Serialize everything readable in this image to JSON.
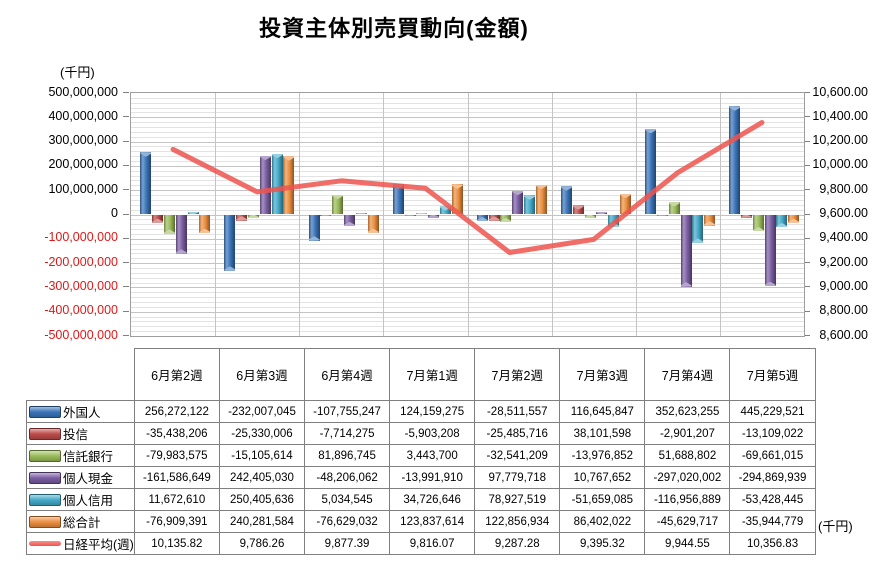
{
  "title": "投資主体別売買動向(金額)",
  "left_axis_unit": "(千円)",
  "right_axis_unit": "(千円)",
  "chart_data": {
    "type": "bar",
    "subtype": "3d-clustered-column-with-line",
    "title": "投資主体別売買動向(金額)",
    "categories": [
      "6月第2週",
      "6月第3週",
      "6月第4週",
      "7月第1週",
      "7月第2週",
      "7月第3週",
      "7月第4週",
      "7月第5週"
    ],
    "series": [
      {
        "name": "外国人",
        "type": "bar",
        "color": "#3a74b8",
        "values": [
          256272122,
          -232007045,
          -107755247,
          124159275,
          -28511557,
          116645847,
          352623255,
          445229521
        ]
      },
      {
        "name": "投信",
        "type": "bar",
        "color": "#be4b48",
        "values": [
          -35438206,
          -25330006,
          -7714275,
          -5903208,
          -25485716,
          38101598,
          -2901207,
          -13109022
        ]
      },
      {
        "name": "信託銀行",
        "type": "bar",
        "color": "#9abb59",
        "values": [
          -79983575,
          -15105614,
          81896745,
          3443700,
          -32541209,
          -13976852,
          51688802,
          -69661015
        ]
      },
      {
        "name": "個人現金",
        "type": "bar",
        "color": "#7a5da2",
        "values": [
          -161586649,
          242405030,
          -48206062,
          -13991910,
          97779718,
          10767652,
          -297020002,
          -294869939
        ]
      },
      {
        "name": "個人信用",
        "type": "bar",
        "color": "#43aac8",
        "values": [
          11672610,
          250405636,
          5034545,
          34726646,
          78927519,
          -51659085,
          -116956889,
          -53428445
        ]
      },
      {
        "name": "総合計",
        "type": "bar",
        "color": "#ec8f3f",
        "values": [
          -76909391,
          240281584,
          -76629032,
          123837614,
          122856934,
          86402022,
          -45629717,
          -35944779
        ]
      },
      {
        "name": "日経平均(週)",
        "type": "line",
        "color": "#ef544e",
        "values": [
          10135.82,
          9786.26,
          9877.39,
          9816.07,
          9287.28,
          9395.32,
          9944.55,
          10356.83
        ]
      }
    ],
    "left_axis": {
      "unit": "(千円)",
      "min": -500000000,
      "max": 500000000,
      "major_step": 100000000,
      "minor_step": 20000000,
      "negative_label_color": "#e01818"
    },
    "right_axis": {
      "unit": "(千円)",
      "min": 8600,
      "max": 10600,
      "major_step": 200
    },
    "grid": true,
    "legend_position": "table-left-column"
  },
  "table": {
    "header": [
      "6月第2週",
      "6月第3週",
      "6月第4週",
      "7月第1週",
      "7月第2週",
      "7月第3週",
      "7月第4週",
      "7月第5週"
    ],
    "rows": [
      {
        "label": "外国人",
        "marker": "bar",
        "color": "#3a74b8",
        "cells": [
          "256,272,122",
          "-232,007,045",
          "-107,755,247",
          "124,159,275",
          "-28,511,557",
          "116,645,847",
          "352,623,255",
          "445,229,521"
        ]
      },
      {
        "label": "投信",
        "marker": "bar",
        "color": "#be4b48",
        "cells": [
          "-35,438,206",
          "-25,330,006",
          "-7,714,275",
          "-5,903,208",
          "-25,485,716",
          "38,101,598",
          "-2,901,207",
          "-13,109,022"
        ]
      },
      {
        "label": "信託銀行",
        "marker": "bar",
        "color": "#9abb59",
        "cells": [
          "-79,983,575",
          "-15,105,614",
          "81,896,745",
          "3,443,700",
          "-32,541,209",
          "-13,976,852",
          "51,688,802",
          "-69,661,015"
        ]
      },
      {
        "label": "個人現金",
        "marker": "bar",
        "color": "#7a5da2",
        "cells": [
          "-161,586,649",
          "242,405,030",
          "-48,206,062",
          "-13,991,910",
          "97,779,718",
          "10,767,652",
          "-297,020,002",
          "-294,869,939"
        ]
      },
      {
        "label": "個人信用",
        "marker": "bar",
        "color": "#43aac8",
        "cells": [
          "11,672,610",
          "250,405,636",
          "5,034,545",
          "34,726,646",
          "78,927,519",
          "-51,659,085",
          "-116,956,889",
          "-53,428,445"
        ]
      },
      {
        "label": "総合計",
        "marker": "bar",
        "color": "#ec8f3f",
        "cells": [
          "-76,909,391",
          "240,281,584",
          "-76,629,032",
          "123,837,614",
          "122,856,934",
          "86,402,022",
          "-45,629,717",
          "-35,944,779"
        ]
      },
      {
        "label": "日経平均(週)",
        "marker": "line",
        "color": "#ef544e",
        "cells": [
          "10,135.82",
          "9,786.26",
          "9,877.39",
          "9,816.07",
          "9,287.28",
          "9,395.32",
          "9,944.55",
          "10,356.83"
        ]
      }
    ]
  }
}
